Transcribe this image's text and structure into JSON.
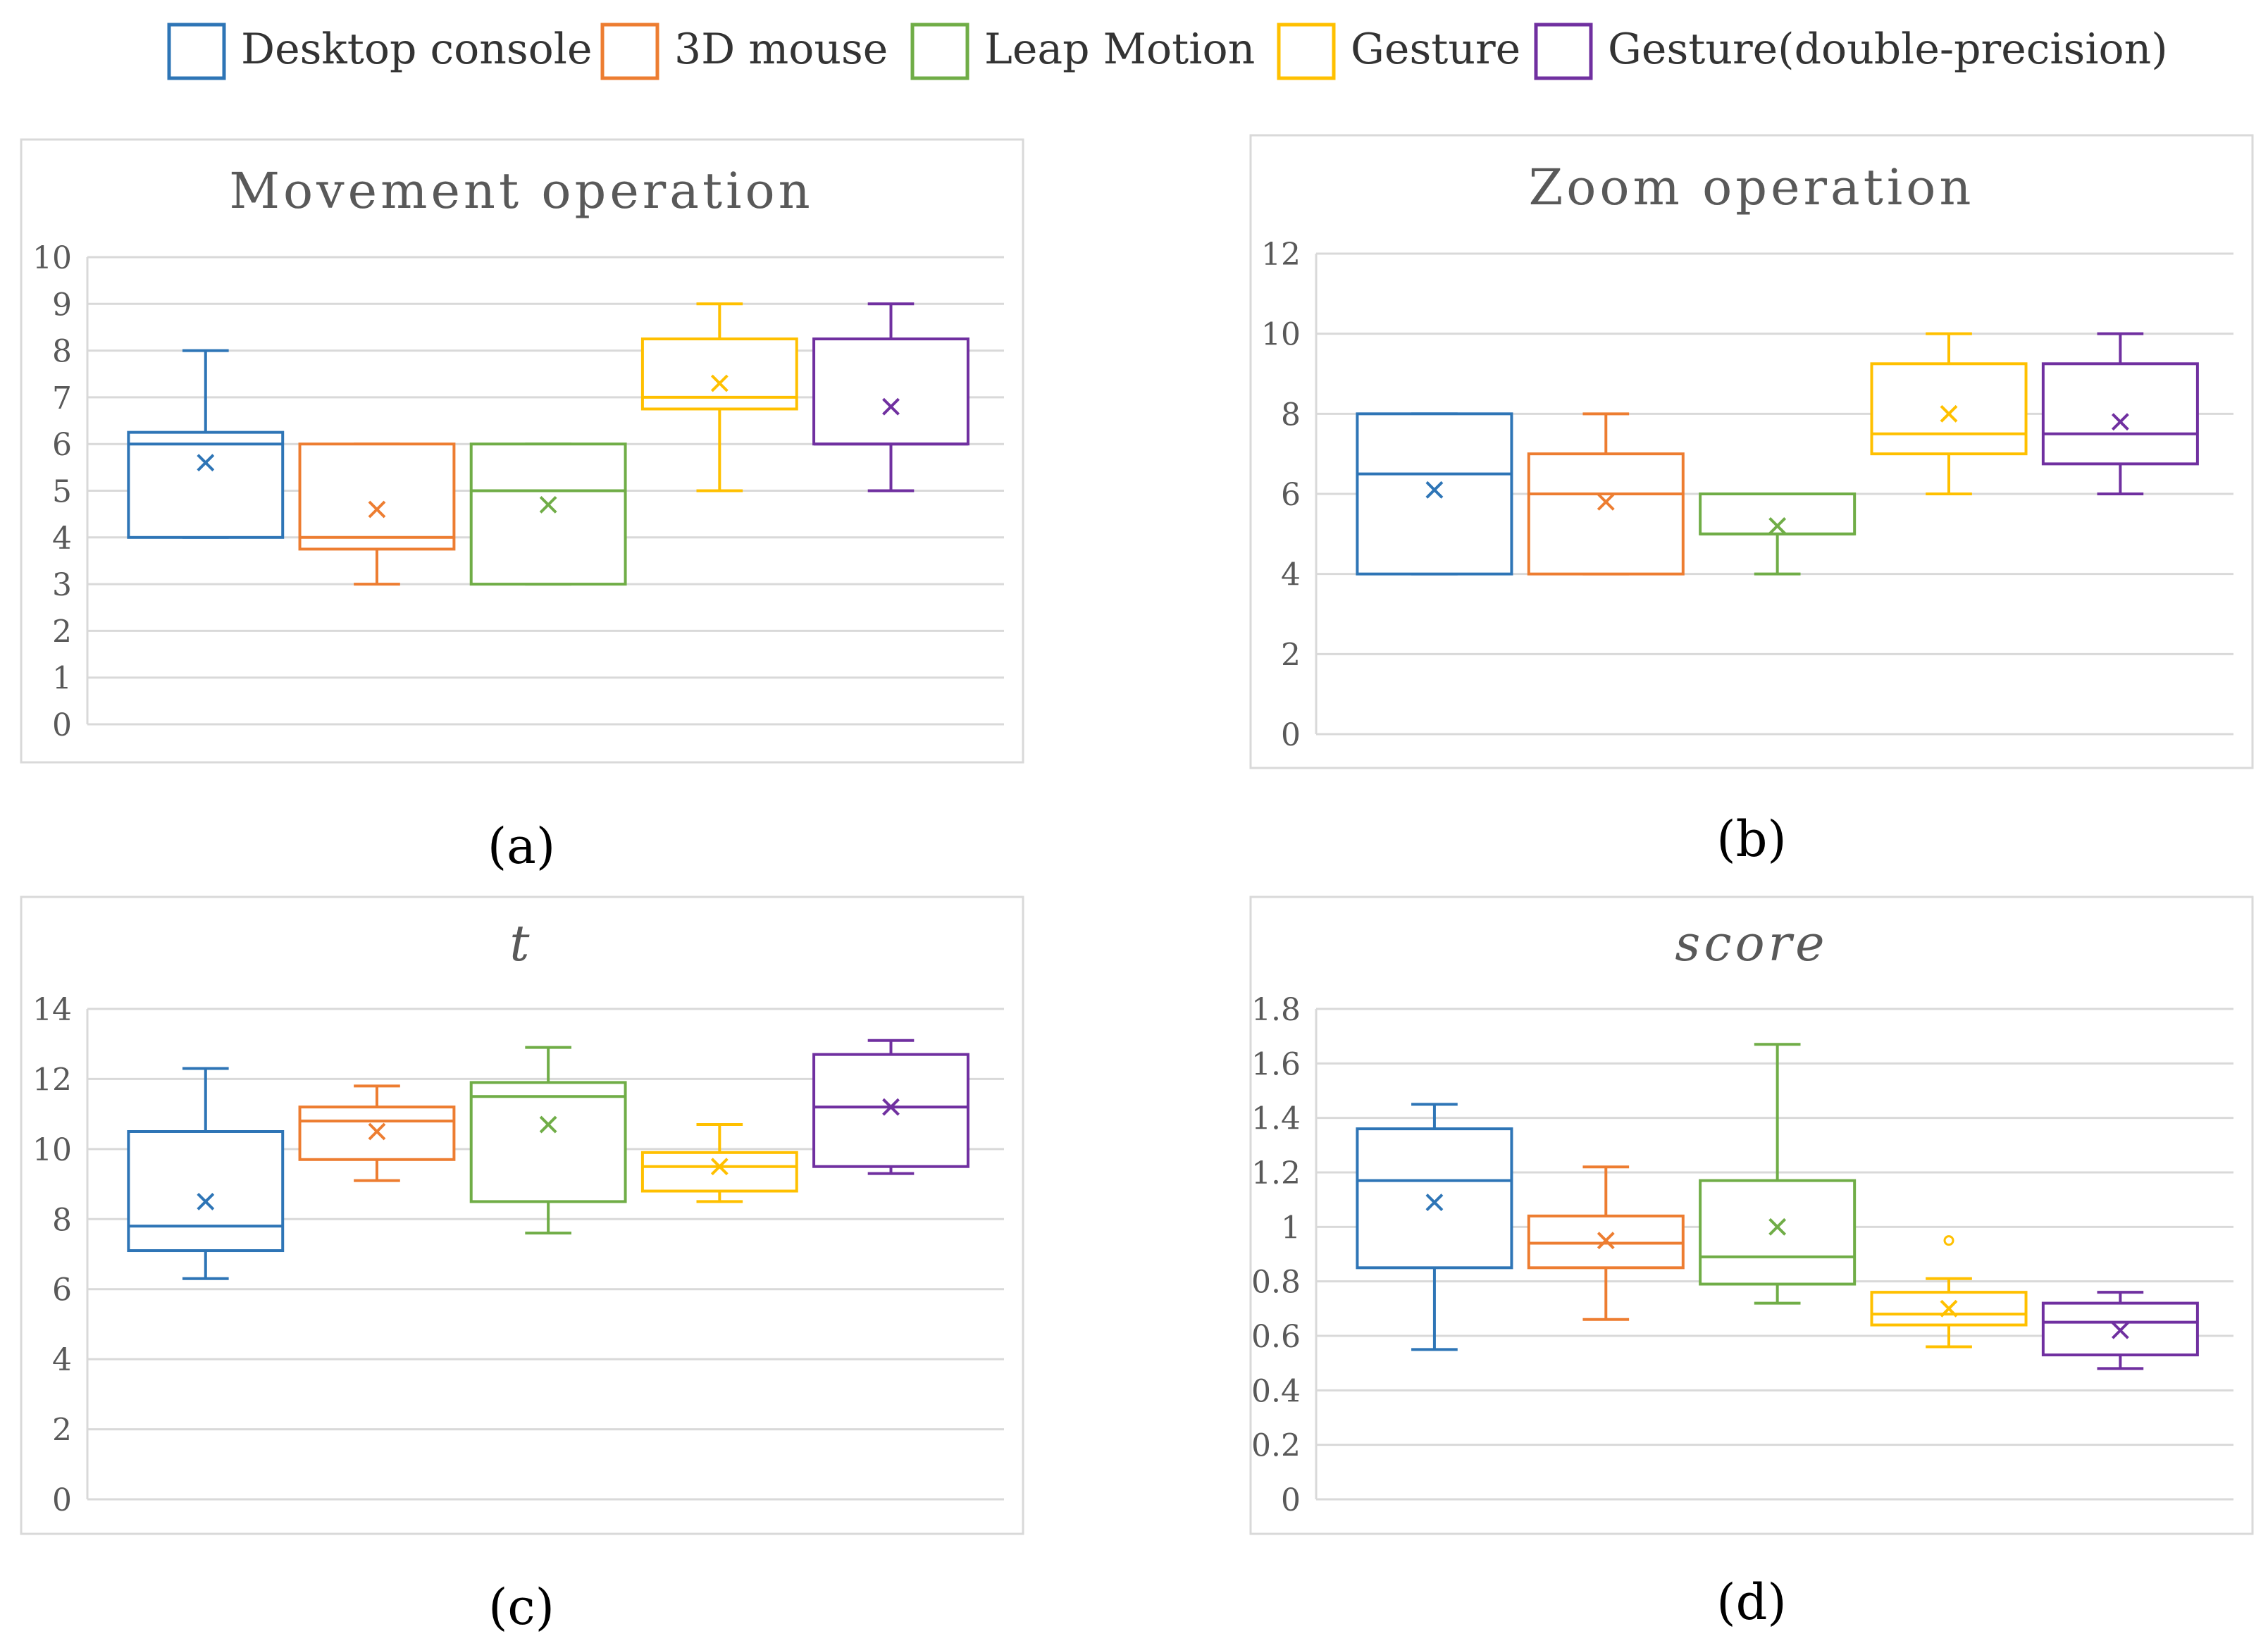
{
  "legend": [
    {
      "name": "Desktop console",
      "color": "#2e75b6"
    },
    {
      "name": "3D mouse",
      "color": "#ed7d31"
    },
    {
      "name": "Leap Motion",
      "color": "#70ad47"
    },
    {
      "name": "Gesture",
      "color": "#ffc000"
    },
    {
      "name": "Gesture(double-precision)",
      "color": "#7030a0"
    }
  ],
  "chart_data": [
    {
      "type": "box",
      "panel": "(a)",
      "title": "Movement operation",
      "title_italic": false,
      "ylim": [
        0,
        10
      ],
      "yticks": [
        0,
        1,
        2,
        3,
        4,
        5,
        6,
        7,
        8,
        9,
        10
      ],
      "tick_labels": [
        "0",
        "1",
        "2",
        "3",
        "4",
        "5",
        "6",
        "7",
        "8",
        "9",
        "10"
      ],
      "grid": true,
      "series": [
        {
          "name": "Desktop console",
          "min": 4,
          "q1": 4,
          "median": 6,
          "q3": 6.25,
          "max": 8,
          "mean": 5.6
        },
        {
          "name": "3D mouse",
          "min": 3,
          "q1": 3.75,
          "median": 4,
          "q3": 6,
          "max": 6,
          "mean": 4.6
        },
        {
          "name": "Leap Motion",
          "min": 3,
          "q1": 3,
          "median": 5,
          "q3": 6,
          "max": 6,
          "mean": 4.7
        },
        {
          "name": "Gesture",
          "min": 5,
          "q1": 6.75,
          "median": 7,
          "q3": 8.25,
          "max": 9,
          "mean": 7.3
        },
        {
          "name": "Gesture(double-precision)",
          "min": 5,
          "q1": 6,
          "median": 6,
          "q3": 8.25,
          "max": 9,
          "mean": 6.8
        }
      ]
    },
    {
      "type": "box",
      "panel": "(b)",
      "title": "Zoom operation",
      "title_italic": false,
      "ylim": [
        0,
        12
      ],
      "yticks": [
        0,
        2,
        4,
        6,
        8,
        10,
        12
      ],
      "tick_labels": [
        "0",
        "2",
        "4",
        "6",
        "8",
        "10",
        "12"
      ],
      "grid": true,
      "series": [
        {
          "name": "Desktop console",
          "min": 4,
          "q1": 4,
          "median": 6.5,
          "q3": 8,
          "max": 8,
          "mean": 6.1
        },
        {
          "name": "3D mouse",
          "min": 4,
          "q1": 4,
          "median": 6,
          "q3": 7,
          "max": 8,
          "mean": 5.8
        },
        {
          "name": "Leap Motion",
          "min": 4,
          "q1": 5,
          "median": 5,
          "q3": 6,
          "max": 6,
          "mean": 5.2
        },
        {
          "name": "Gesture",
          "min": 6,
          "q1": 7,
          "median": 7.5,
          "q3": 9.25,
          "max": 10,
          "mean": 8
        },
        {
          "name": "Gesture(double-precision)",
          "min": 6,
          "q1": 6.75,
          "median": 7.5,
          "q3": 9.25,
          "max": 10,
          "mean": 7.8
        }
      ]
    },
    {
      "type": "box",
      "panel": "(c)",
      "title": "t",
      "title_italic": true,
      "ylim": [
        0,
        14
      ],
      "yticks": [
        0,
        2,
        4,
        6,
        8,
        10,
        12,
        14
      ],
      "tick_labels": [
        "0",
        "2",
        "4",
        "6",
        "8",
        "10",
        "12",
        "14"
      ],
      "grid": true,
      "series": [
        {
          "name": "Desktop console",
          "min": 6.3,
          "q1": 7.1,
          "median": 7.8,
          "q3": 10.5,
          "max": 12.3,
          "mean": 8.5
        },
        {
          "name": "3D mouse",
          "min": 9.1,
          "q1": 9.7,
          "median": 10.8,
          "q3": 11.2,
          "max": 11.8,
          "mean": 10.5
        },
        {
          "name": "Leap Motion",
          "min": 7.6,
          "q1": 8.5,
          "median": 11.5,
          "q3": 11.9,
          "max": 12.9,
          "mean": 10.7
        },
        {
          "name": "Gesture",
          "min": 8.5,
          "q1": 8.8,
          "median": 9.5,
          "q3": 9.9,
          "max": 10.7,
          "mean": 9.5
        },
        {
          "name": "Gesture(double-precision)",
          "min": 9.3,
          "q1": 9.5,
          "median": 11.2,
          "q3": 12.7,
          "max": 13.1,
          "mean": 11.2
        }
      ]
    },
    {
      "type": "box",
      "panel": "(d)",
      "title": "score",
      "title_italic": true,
      "ylim": [
        0,
        1.8
      ],
      "yticks": [
        0,
        0.2,
        0.4,
        0.6,
        0.8,
        1.0,
        1.2,
        1.4,
        1.6,
        1.8
      ],
      "tick_labels": [
        "0",
        "0.2",
        "0.4",
        "0.6",
        "0.8",
        "1",
        "1.2",
        "1.4",
        "1.6",
        "1.8"
      ],
      "grid": true,
      "series": [
        {
          "name": "Desktop console",
          "min": 0.55,
          "q1": 0.85,
          "median": 1.17,
          "q3": 1.36,
          "max": 1.45,
          "mean": 1.09
        },
        {
          "name": "3D mouse",
          "min": 0.66,
          "q1": 0.85,
          "median": 0.94,
          "q3": 1.04,
          "max": 1.22,
          "mean": 0.95
        },
        {
          "name": "Leap Motion",
          "min": 0.72,
          "q1": 0.79,
          "median": 0.89,
          "q3": 1.17,
          "max": 1.67,
          "mean": 1.0
        },
        {
          "name": "Gesture",
          "min": 0.56,
          "q1": 0.64,
          "median": 0.68,
          "q3": 0.76,
          "max": 0.81,
          "mean": 0.7,
          "outliers": [
            0.95
          ]
        },
        {
          "name": "Gesture(double-precision)",
          "min": 0.48,
          "q1": 0.53,
          "median": 0.65,
          "q3": 0.72,
          "max": 0.76,
          "mean": 0.62
        }
      ]
    }
  ]
}
